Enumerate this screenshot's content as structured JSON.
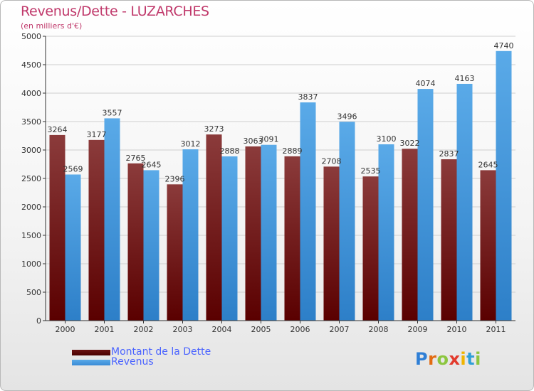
{
  "header": {
    "title": "Revenus/Dette - LUZARCHES",
    "subtitle": "(en milliers d'€)"
  },
  "colors": {
    "dette_top": "#8b3b3b",
    "dette_bottom": "#5a0000",
    "revenus_top": "#5aaae8",
    "revenus_bottom": "#2d7fc8",
    "title": "#c0396b",
    "legend_text": "#4a63ff"
  },
  "legend": {
    "dette_label": "Montant de la Dette",
    "revenus_label": "Revenus"
  },
  "logo": {
    "letters": [
      "P",
      "r",
      "o",
      "x",
      "i",
      "t",
      "i"
    ],
    "colors": [
      "#2f7fd6",
      "#e26b12",
      "#8cc63f",
      "#e23a2c",
      "#f0b400",
      "#2f9fd6",
      "#8cc63f"
    ]
  },
  "chart_data": {
    "type": "bar",
    "title": "Revenus/Dette - LUZARCHES",
    "subtitle": "(en milliers d'€)",
    "categories": [
      "2000",
      "2001",
      "2002",
      "2003",
      "2004",
      "2005",
      "2006",
      "2007",
      "2008",
      "2009",
      "2010",
      "2011"
    ],
    "series": [
      {
        "name": "Montant de la Dette",
        "values": [
          3264,
          3177,
          2765,
          2396,
          3273,
          3063,
          2889,
          2708,
          2535,
          3022,
          2837,
          2645
        ]
      },
      {
        "name": "Revenus",
        "values": [
          2569,
          3557,
          2645,
          3012,
          2888,
          3091,
          3837,
          3496,
          3100,
          4074,
          4163,
          4740
        ]
      }
    ],
    "ylim": [
      0,
      5000
    ],
    "yticks": [
      0,
      500,
      1000,
      1500,
      2000,
      2500,
      3000,
      3500,
      4000,
      4500,
      5000
    ],
    "grid": true,
    "legend_position": "bottom-left"
  }
}
